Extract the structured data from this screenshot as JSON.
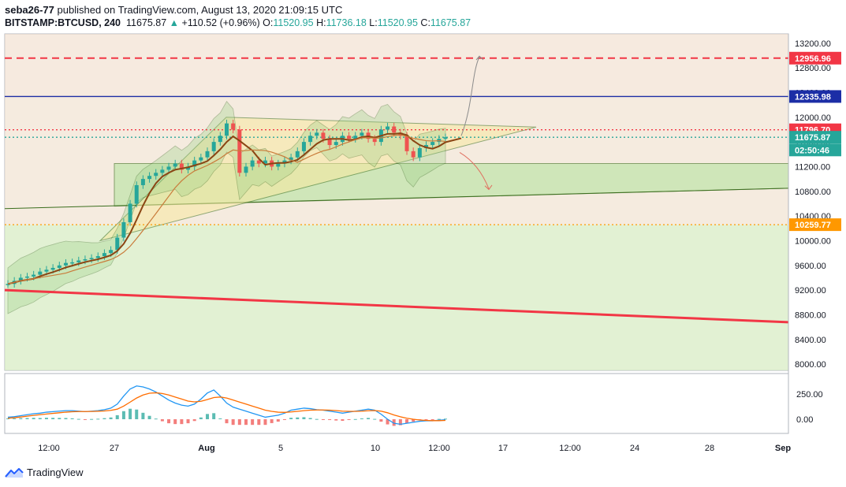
{
  "header": {
    "line1_user": "seba26-77",
    "line1_rest": "published on TradingView.com, August 13, 2020 21:09:15 UTC",
    "symbol": "BITSTAMP:BTCUSD, 240",
    "last": "11675.87",
    "change_arrow": "▲",
    "change": "+110.52 (+0.96%)",
    "o_label": "O:",
    "o_value": "11520.95",
    "h_label": "H:",
    "h_value": "11736.18",
    "l_label": "L:",
    "l_value": "11520.95",
    "c_label": "C:",
    "c_value": "11675.87"
  },
  "footer": {
    "brand": "TradingView"
  },
  "chart_data": {
    "type": "line",
    "symbol": "BITSTAMP:BTCUSD",
    "interval": "240",
    "price_axis": {
      "range": [
        7900,
        13350
      ],
      "ticks": [
        "13200.00",
        "12800.00",
        "12400.00",
        "12000.00",
        "11600.00",
        "11200.00",
        "10800.00",
        "10400.00",
        "10000.00",
        "9600.00",
        "9200.00",
        "8800.00",
        "8400.00",
        "8000.00"
      ],
      "tick_values": [
        13200,
        12800,
        12400,
        12000,
        11600,
        11200,
        10800,
        10400,
        10000,
        9600,
        9200,
        8800,
        8400,
        8000
      ]
    },
    "time_axis": {
      "labels": [
        "12:00",
        "27",
        "Aug",
        "5",
        "10",
        "12:00",
        "17",
        "12:00",
        "24",
        "28",
        "Sep"
      ],
      "bold_labels": [
        "Aug",
        "Sep"
      ]
    },
    "price_labels": [
      {
        "text": "12956.96",
        "value": 12956.96,
        "color": "#f23645"
      },
      {
        "text": "12335.98",
        "value": 12335.98,
        "color": "#1c2ea6"
      },
      {
        "text": "11796.70",
        "value": 11796.7,
        "color": "#f23645"
      },
      {
        "text": "11675.87",
        "value": 11675.87,
        "color": "#26a69a"
      },
      {
        "text": "02:50:46",
        "value": 11470,
        "color": "#26a69a"
      },
      {
        "text": "10259.77",
        "value": 10259.77,
        "color": "#ff9800"
      }
    ],
    "horizontal_lines": [
      {
        "value": 12956.96,
        "color": "#f23645",
        "style": "dashed"
      },
      {
        "value": 12335.98,
        "color": "#1c2ea6",
        "style": "solid"
      },
      {
        "value": 11796.7,
        "color": "#f23645",
        "style": "dotted"
      },
      {
        "value": 11675.87,
        "color": "#26a69a",
        "style": "dotted"
      },
      {
        "value": 10259.77,
        "color": "#ff9800",
        "style": "dotted"
      }
    ],
    "trendlines": [
      {
        "name_hint": "red trend",
        "from": [
          0,
          9200
        ],
        "to": [
          1,
          8680
        ],
        "color": "#f23645"
      }
    ],
    "price_series": [
      9300,
      9350,
      9400,
      9420,
      9450,
      9500,
      9530,
      9560,
      9600,
      9640,
      9650,
      9680,
      9700,
      9720,
      9750,
      9800,
      9850,
      10050,
      10300,
      10600,
      10900,
      11000,
      11050,
      11100,
      11150,
      11200,
      11250,
      11150,
      11200,
      11300,
      11350,
      11450,
      11600,
      11700,
      11900,
      11800,
      11100,
      11200,
      11300,
      11250,
      11300,
      11200,
      11250,
      11300,
      11350,
      11450,
      11600,
      11700,
      11750,
      11650,
      11550,
      11600,
      11700,
      11650,
      11700,
      11750,
      11650,
      11600,
      11800,
      11850,
      11750,
      11700,
      11450,
      11350,
      11500,
      11550,
      11600,
      11650,
      11676
    ],
    "macd_axis": {
      "ticks": [
        "250.00",
        "0.00"
      ],
      "tick_values": [
        250,
        0
      ]
    },
    "macd_series": [
      20,
      25,
      35,
      45,
      55,
      60,
      70,
      75,
      80,
      85,
      85,
      80,
      75,
      80,
      85,
      95,
      110,
      150,
      230,
      300,
      330,
      320,
      300,
      270,
      230,
      190,
      160,
      140,
      130,
      150,
      200,
      260,
      290,
      230,
      160,
      120,
      100,
      80,
      60,
      40,
      20,
      30,
      40,
      60,
      90,
      100,
      110,
      105,
      95,
      90,
      80,
      70,
      60,
      70,
      80,
      90,
      100,
      90,
      50,
      0,
      -40,
      -50,
      -40,
      -30,
      -20,
      -15,
      -15,
      -10,
      -5
    ],
    "signal_series": [
      10,
      15,
      22,
      30,
      38,
      45,
      52,
      58,
      64,
      70,
      74,
      76,
      76,
      77,
      79,
      82,
      88,
      100,
      130,
      170,
      210,
      240,
      258,
      262,
      255,
      240,
      220,
      200,
      180,
      172,
      178,
      195,
      215,
      220,
      210,
      190,
      170,
      150,
      130,
      110,
      90,
      78,
      70,
      68,
      72,
      78,
      85,
      90,
      92,
      92,
      90,
      86,
      80,
      78,
      78,
      80,
      84,
      86,
      80,
      64,
      42,
      24,
      10,
      0,
      -8,
      -12,
      -14,
      -14,
      -12
    ]
  }
}
